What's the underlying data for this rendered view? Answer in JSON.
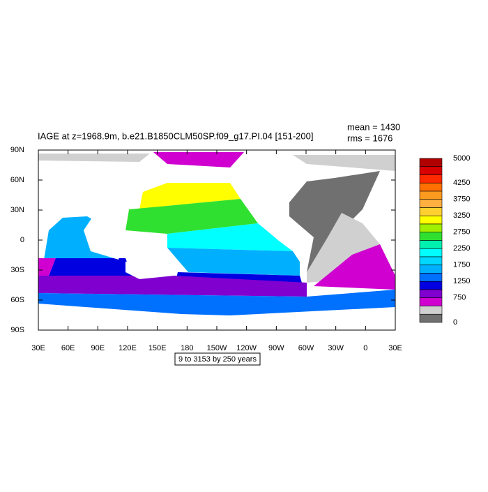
{
  "header": {
    "title": "IAGE at z=1968.9m, b.e21.B1850CLM50SP.f09_g17.PI.04 [151-200]",
    "mean": "mean = 1430",
    "rms": "rms = 1676"
  },
  "map": {
    "xlim": [
      30,
      390
    ],
    "ylim": [
      -90,
      90
    ],
    "xticks": [
      {
        "value": 30,
        "label": "30E"
      },
      {
        "value": 60,
        "label": "60E"
      },
      {
        "value": 90,
        "label": "90E"
      },
      {
        "value": 120,
        "label": "120E"
      },
      {
        "value": 150,
        "label": "150E"
      },
      {
        "value": 180,
        "label": "180"
      },
      {
        "value": 210,
        "label": "150W"
      },
      {
        "value": 240,
        "label": "120W"
      },
      {
        "value": 270,
        "label": "90W"
      },
      {
        "value": 300,
        "label": "60W"
      },
      {
        "value": 330,
        "label": "30W"
      },
      {
        "value": 360,
        "label": "0"
      },
      {
        "value": 390,
        "label": "30E"
      }
    ],
    "yticks": [
      {
        "value": 90,
        "label": "90N"
      },
      {
        "value": 60,
        "label": "60N"
      },
      {
        "value": 30,
        "label": "30N"
      },
      0,
      {
        "value": -30,
        "label": "30S"
      },
      {
        "value": -60,
        "label": "60S"
      },
      {
        "value": -90,
        "label": "90S"
      }
    ],
    "contour_note": "9 to 3153 by 250 years"
  },
  "colorbar": {
    "range": [
      0,
      5000
    ],
    "colors": [
      "#b00000",
      "#d80000",
      "#ff2a00",
      "#ff7000",
      "#ff9a20",
      "#ffb040",
      "#ffd030",
      "#ffff00",
      "#a0f000",
      "#30e030",
      "#00f0b0",
      "#00ffff",
      "#00d8ff",
      "#00b0ff",
      "#0070ff",
      "#0000e0",
      "#8000d0",
      "#d000d0",
      "#d0d0d0",
      "#707070"
    ],
    "ticks": [
      5000,
      4250,
      3750,
      3250,
      2750,
      2250,
      1750,
      1250,
      750,
      0
    ]
  }
}
